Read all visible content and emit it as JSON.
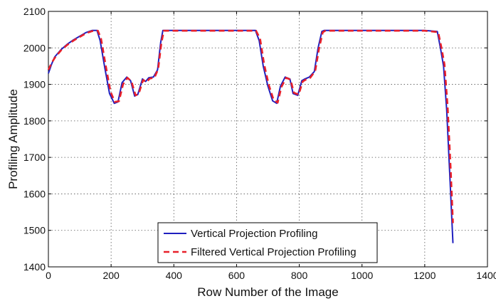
{
  "chart_data": {
    "type": "line",
    "title": "",
    "xlabel": "Row Number of the Image",
    "ylabel": "Profiling Amplitude",
    "xlim": [
      0,
      1400
    ],
    "ylim": [
      1400,
      2100
    ],
    "xticks": [
      "0",
      "200",
      "400",
      "600",
      "800",
      "1000",
      "1200",
      "1400"
    ],
    "yticks": [
      "1400",
      "1500",
      "1600",
      "1700",
      "1800",
      "1900",
      "2000",
      "2100"
    ],
    "grid": true,
    "legend_position": "bottom-center",
    "series": [
      {
        "name": "Vertical Projection Profiling",
        "color": "#1f1fbf",
        "style": "solid",
        "x": [
          0,
          10,
          20,
          40,
          60,
          80,
          100,
          120,
          140,
          155,
          165,
          180,
          195,
          210,
          222,
          235,
          250,
          262,
          275,
          285,
          300,
          310,
          320,
          335,
          348,
          358,
          365,
          400,
          500,
          600,
          660,
          672,
          685,
          700,
          715,
          728,
          740,
          755,
          770,
          780,
          795,
          808,
          818,
          832,
          848,
          860,
          872,
          880,
          900,
          1000,
          1100,
          1200,
          1240,
          1250,
          1260,
          1270,
          1280,
          1290
        ],
        "values": [
          1930,
          1955,
          1975,
          1995,
          2010,
          2022,
          2032,
          2042,
          2048,
          2048,
          2020,
          1945,
          1875,
          1848,
          1852,
          1905,
          1920,
          1910,
          1868,
          1872,
          1915,
          1908,
          1918,
          1920,
          1940,
          2015,
          2048,
          2048,
          2048,
          2048,
          2048,
          2020,
          1950,
          1895,
          1855,
          1848,
          1895,
          1920,
          1915,
          1875,
          1870,
          1910,
          1915,
          1920,
          1935,
          2000,
          2045,
          2048,
          2048,
          2048,
          2048,
          2048,
          2045,
          2000,
          1950,
          1830,
          1650,
          1465
        ]
      },
      {
        "name": "Filtered Vertical Projection Profiling",
        "color": "#e8202a",
        "style": "dashed",
        "x": [
          0,
          10,
          20,
          40,
          60,
          80,
          100,
          120,
          140,
          158,
          168,
          183,
          198,
          212,
          225,
          238,
          252,
          265,
          278,
          288,
          302,
          313,
          323,
          338,
          350,
          360,
          368,
          400,
          500,
          600,
          662,
          675,
          688,
          703,
          718,
          731,
          743,
          758,
          772,
          783,
          798,
          811,
          821,
          835,
          851,
          863,
          875,
          883,
          900,
          1000,
          1100,
          1200,
          1243,
          1253,
          1263,
          1273,
          1283,
          1290
        ],
        "values": [
          1940,
          1958,
          1972,
          1993,
          2008,
          2020,
          2030,
          2040,
          2046,
          2047,
          2025,
          1950,
          1880,
          1852,
          1854,
          1900,
          1918,
          1908,
          1870,
          1874,
          1912,
          1906,
          1916,
          1918,
          1942,
          2012,
          2047,
          2047,
          2047,
          2047,
          2047,
          2025,
          1955,
          1898,
          1858,
          1850,
          1893,
          1918,
          1913,
          1877,
          1872,
          1908,
          1913,
          1918,
          1937,
          1998,
          2043,
          2047,
          2047,
          2047,
          2047,
          2047,
          2043,
          2002,
          1955,
          1840,
          1665,
          1520
        ]
      }
    ]
  }
}
